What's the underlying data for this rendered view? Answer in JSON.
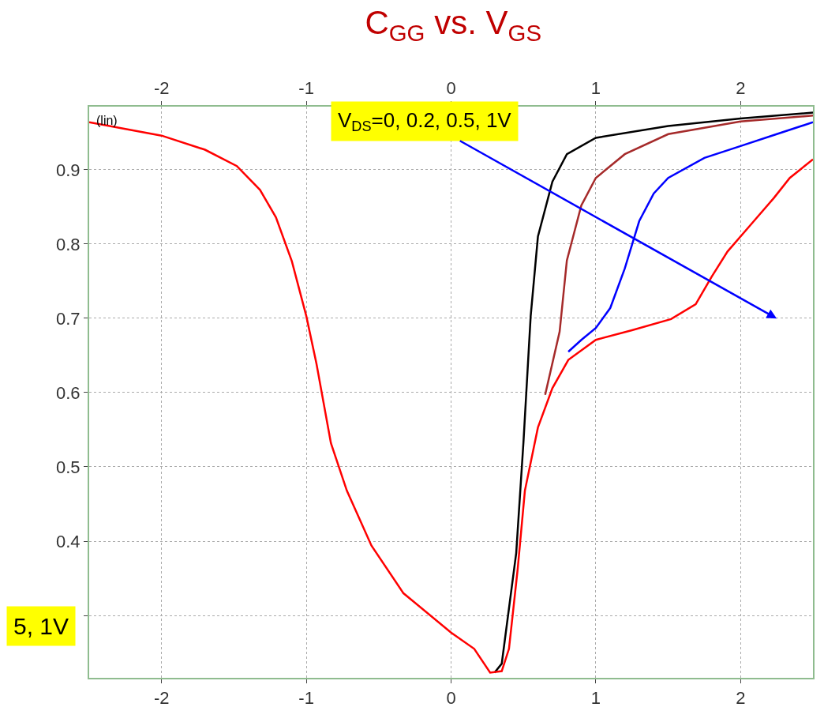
{
  "chart_data": {
    "type": "line",
    "title": "C$_{GG}$ vs. V$_{GS}$",
    "xlim": [
      -2.5,
      2.5
    ],
    "xticks": [
      -2,
      -1,
      0,
      1,
      2
    ],
    "x2lim": [
      -2.5,
      2.5
    ],
    "x2ticks": [
      -2,
      -1,
      0,
      1,
      2
    ],
    "ylim": [
      0.216,
      0.985
    ],
    "yticks": [
      {
        "value": 0.3,
        "label": null
      },
      0.4,
      0.5,
      0.6,
      0.7,
      0.8,
      0.9
    ],
    "grid": true,
    "line_style": "solid",
    "marker": "none",
    "annotations": [
      "(lin)",
      "5, 1V",
      "V$_{DS}$=0, 0.2, 0.5, 1V"
    ],
    "series": [
      {
        "color": "#000000",
        "x": [
          0.3,
          0.35,
          0.45,
          0.5,
          0.55,
          0.6,
          0.7,
          0.8,
          1.0,
          1.5,
          2.0,
          2.5
        ],
        "values": [
          0.223,
          0.235,
          0.384,
          0.533,
          0.703,
          0.81,
          0.884,
          0.921,
          0.943,
          0.959,
          0.969,
          0.977
        ]
      },
      {
        "color": "#a52a2a",
        "x": [
          0.65,
          0.75,
          0.8,
          0.9,
          1.0,
          1.2,
          1.5,
          2.0,
          2.5
        ],
        "values": [
          0.597,
          0.682,
          0.778,
          0.852,
          0.889,
          0.921,
          0.948,
          0.965,
          0.973
        ]
      },
      {
        "color": "#0000ff",
        "x": [
          0.81,
          0.9,
          1.0,
          1.1,
          1.2,
          1.3,
          1.4,
          1.5,
          1.75,
          2.0,
          2.25,
          2.5
        ],
        "values": [
          0.655,
          0.671,
          0.687,
          0.714,
          0.767,
          0.831,
          0.868,
          0.889,
          0.916,
          0.932,
          0.948,
          0.964
        ]
      },
      {
        "color": "#ff0000",
        "x": [
          -2.5,
          -2.0,
          -1.7,
          -1.48,
          -1.32,
          -1.21,
          -1.1,
          -1.0,
          -0.93,
          -0.83,
          -0.72,
          -0.55,
          -0.33,
          0.0,
          0.16,
          0.27,
          0.35,
          0.4,
          0.46,
          0.51,
          0.6,
          0.7,
          0.81,
          1.0,
          1.25,
          1.52,
          1.69,
          1.8,
          1.91,
          2.07,
          2.23,
          2.34,
          2.5
        ],
        "values": [
          0.964,
          0.946,
          0.927,
          0.905,
          0.873,
          0.836,
          0.777,
          0.703,
          0.639,
          0.532,
          0.468,
          0.394,
          0.33,
          0.277,
          0.255,
          0.223,
          0.225,
          0.255,
          0.362,
          0.468,
          0.553,
          0.606,
          0.644,
          0.671,
          0.684,
          0.699,
          0.719,
          0.756,
          0.79,
          0.826,
          0.862,
          0.889,
          0.914
        ]
      }
    ]
  }
}
